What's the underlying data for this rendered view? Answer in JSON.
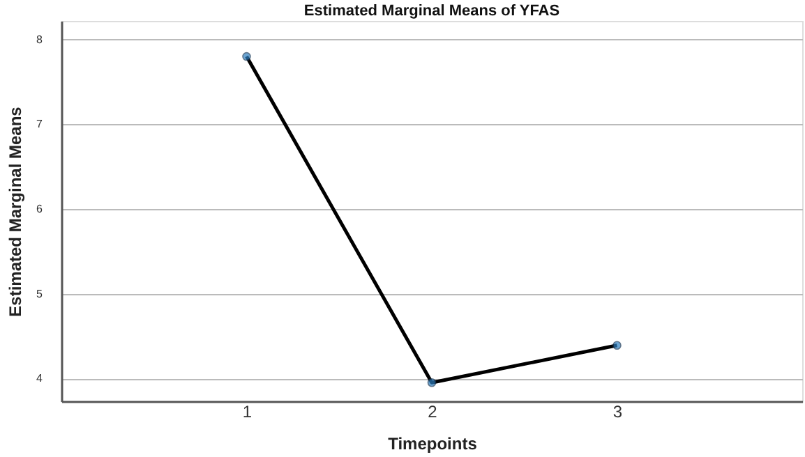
{
  "chart_data": {
    "type": "line",
    "title": "Estimated Marginal Means of YFAS",
    "xlabel": "Timepoints",
    "ylabel": "Estimated Marginal Means",
    "categories": [
      "1",
      "2",
      "3"
    ],
    "series": [
      {
        "color": "#000000",
        "values": [
          7.8,
          3.95,
          4.39
        ]
      }
    ],
    "ylim": [
      3.73,
      8.22
    ],
    "yticks": [
      4,
      5,
      6,
      7,
      8
    ],
    "grid": "y",
    "marker": "circle",
    "line_style": "solid"
  }
}
